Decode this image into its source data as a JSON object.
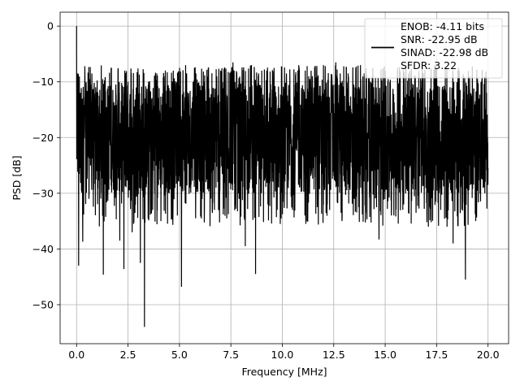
{
  "chart_data": {
    "type": "line",
    "xlabel": "Frequency [MHz]",
    "ylabel": "PSD [dB]",
    "xlim": [
      -0.8,
      21.0
    ],
    "ylim": [
      -57.0,
      2.5
    ],
    "xticks": [
      0.0,
      2.5,
      5.0,
      7.5,
      10.0,
      12.5,
      15.0,
      17.5,
      20.0
    ],
    "xtick_labels": [
      "0.0",
      "2.5",
      "5.0",
      "7.5",
      "10.0",
      "12.5",
      "15.0",
      "17.5",
      "20.0"
    ],
    "yticks": [
      0,
      -10,
      -20,
      -30,
      -40,
      -50
    ],
    "ytick_labels": [
      "0",
      "−10",
      "−20",
      "−30",
      "−40",
      "−50"
    ],
    "grid": true,
    "legend": {
      "placement": "top-right",
      "entries": [
        "ENOB: -4.11 bits",
        "SNR: -22.95 dB",
        "SINAD: -22.98 dB",
        "SFDR: 3.22"
      ]
    },
    "series": [
      {
        "color": "#000000",
        "noise_floor_db": {
          "typical_min": -30,
          "typical_max": -10,
          "mean": -18
        },
        "x": [
          0.0,
          0.05,
          0.1,
          0.18,
          0.3,
          0.45,
          0.6,
          0.75,
          0.9,
          1.1,
          1.3,
          1.5,
          1.7,
          1.9,
          2.1,
          2.3,
          2.5,
          2.7,
          2.9,
          3.1,
          3.3,
          3.5,
          3.7,
          3.9,
          4.1,
          4.3,
          4.5,
          4.7,
          4.9,
          5.1,
          5.3,
          5.5,
          5.8,
          6.1,
          6.4,
          6.7,
          7.0,
          7.3,
          7.6,
          7.9,
          8.2,
          8.5,
          8.7,
          9.0,
          9.3,
          9.6,
          9.9,
          10.2,
          10.5,
          10.8,
          11.1,
          11.4,
          11.7,
          12.0,
          12.3,
          12.6,
          12.9,
          13.2,
          13.5,
          13.8,
          14.1,
          14.4,
          14.7,
          15.0,
          15.3,
          15.6,
          15.9,
          16.2,
          16.5,
          16.8,
          17.1,
          17.4,
          17.7,
          18.0,
          18.3,
          18.6,
          18.9,
          19.1,
          19.4,
          19.7,
          20.0
        ],
        "y": [
          0.0,
          -8.5,
          -43.0,
          -12.0,
          -38.7,
          -14.0,
          -31.0,
          -13.5,
          -27.0,
          -12.5,
          -44.6,
          -11.5,
          -29.0,
          -12.0,
          -38.5,
          -43.6,
          -10.0,
          -37.0,
          -11.0,
          -42.5,
          -54.0,
          -10.0,
          -33.0,
          -8.5,
          -35.0,
          -9.0,
          -30.0,
          -8.0,
          -34.0,
          -46.8,
          -7.0,
          -29.0,
          -8.5,
          -31.0,
          -7.5,
          -33.0,
          -8.0,
          -34.5,
          -6.5,
          -31.0,
          -39.5,
          -7.0,
          -44.5,
          -8.0,
          -32.0,
          -7.5,
          -35.5,
          -8.5,
          -33.0,
          -7.0,
          -34.0,
          -8.0,
          -32.5,
          -7.0,
          -33.0,
          -6.5,
          -35.0,
          -8.5,
          -31.0,
          -7.0,
          -33.5,
          -7.5,
          -38.3,
          -8.0,
          -34.0,
          -7.5,
          -32.0,
          -8.0,
          -33.5,
          -7.0,
          -36.0,
          -8.0,
          -33.0,
          -7.5,
          -39.0,
          -8.0,
          -45.5,
          -9.0,
          -35.0,
          -9.5,
          -25.5
        ]
      }
    ]
  }
}
